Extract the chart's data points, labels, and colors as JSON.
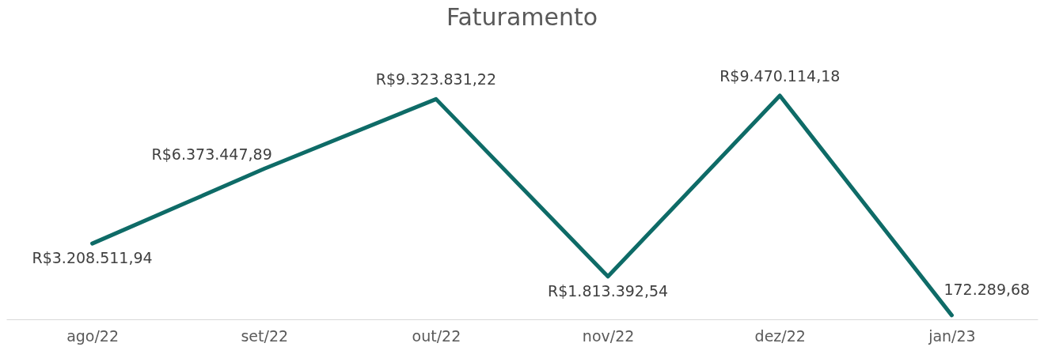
{
  "chart_data": {
    "type": "line",
    "title": "Faturamento",
    "categories": [
      "ago/22",
      "set/22",
      "out/22",
      "nov/22",
      "dez/22",
      "jan/23"
    ],
    "series": [
      {
        "color": "#0e6b67",
        "values": [
          3208511.94,
          6373447.89,
          9323831.22,
          1813392.54,
          9470114.18,
          172289.68
        ],
        "value_labels": [
          "R$3.208.511,94",
          "R$6.373.447,89",
          "R$9.323.831,22",
          "R$1.813.392,54",
          "R$9.470.114,18",
          "172.289,68"
        ]
      }
    ]
  }
}
